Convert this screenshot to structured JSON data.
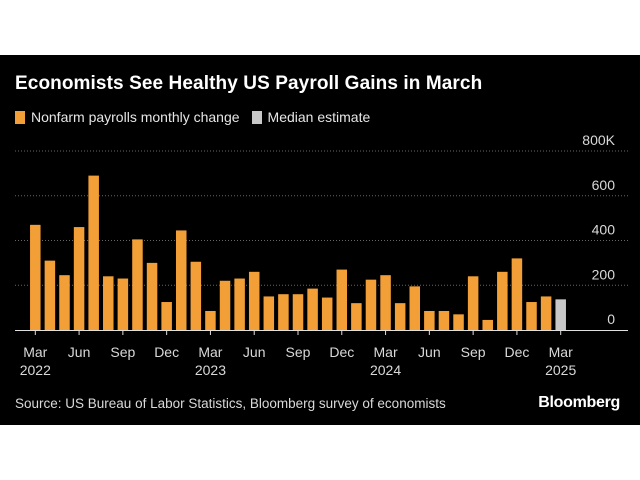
{
  "title": "Economists See Healthy US Payroll Gains in March",
  "source": "Source: US Bureau of Labor Statistics, Bloomberg survey of economists",
  "brand": "Bloomberg",
  "colors": {
    "background": "#000000",
    "actual": "#f39f37",
    "estimate": "#c8c8c8",
    "grid": "#666666",
    "text": "#ffffff"
  },
  "chart_data": {
    "type": "bar",
    "legend": [
      {
        "label": "Nonfarm payrolls monthly change",
        "color": "#f39f37"
      },
      {
        "label": "Median estimate",
        "color": "#c8c8c8"
      }
    ],
    "y_ticks": [
      {
        "value": 0,
        "label": "0"
      },
      {
        "value": 200,
        "label": "200"
      },
      {
        "value": 400,
        "label": "400"
      },
      {
        "value": 600,
        "label": "600"
      },
      {
        "value": 800,
        "label": "800K"
      }
    ],
    "ylim": [
      0,
      800
    ],
    "months": [
      "2022-03",
      "2022-04",
      "2022-05",
      "2022-06",
      "2022-07",
      "2022-08",
      "2022-09",
      "2022-10",
      "2022-11",
      "2022-12",
      "2023-01",
      "2023-02",
      "2023-03",
      "2023-04",
      "2023-05",
      "2023-06",
      "2023-07",
      "2023-08",
      "2023-09",
      "2023-10",
      "2023-11",
      "2023-12",
      "2024-01",
      "2024-02",
      "2024-03",
      "2024-04",
      "2024-05",
      "2024-06",
      "2024-07",
      "2024-08",
      "2024-09",
      "2024-10",
      "2024-11",
      "2024-12",
      "2025-01",
      "2025-02",
      "2025-03"
    ],
    "series": [
      {
        "name": "Nonfarm payrolls monthly change",
        "values": [
          470,
          310,
          245,
          460,
          690,
          240,
          230,
          405,
          300,
          125,
          445,
          305,
          85,
          220,
          230,
          260,
          150,
          160,
          160,
          185,
          145,
          270,
          120,
          225,
          245,
          120,
          195,
          85,
          85,
          70,
          240,
          45,
          260,
          320,
          125,
          150,
          null
        ]
      },
      {
        "name": "Median estimate",
        "values": [
          null,
          null,
          null,
          null,
          null,
          null,
          null,
          null,
          null,
          null,
          null,
          null,
          null,
          null,
          null,
          null,
          null,
          null,
          null,
          null,
          null,
          null,
          null,
          null,
          null,
          null,
          null,
          null,
          null,
          null,
          null,
          null,
          null,
          null,
          null,
          null,
          137
        ]
      }
    ],
    "x_ticks": [
      {
        "index": 0,
        "label": "Mar",
        "year": "2022"
      },
      {
        "index": 3,
        "label": "Jun",
        "year": ""
      },
      {
        "index": 6,
        "label": "Sep",
        "year": ""
      },
      {
        "index": 9,
        "label": "Dec",
        "year": ""
      },
      {
        "index": 12,
        "label": "Mar",
        "year": "2023"
      },
      {
        "index": 15,
        "label": "Jun",
        "year": ""
      },
      {
        "index": 18,
        "label": "Sep",
        "year": ""
      },
      {
        "index": 21,
        "label": "Dec",
        "year": ""
      },
      {
        "index": 24,
        "label": "Mar",
        "year": "2024"
      },
      {
        "index": 27,
        "label": "Jun",
        "year": ""
      },
      {
        "index": 30,
        "label": "Sep",
        "year": ""
      },
      {
        "index": 33,
        "label": "Dec",
        "year": ""
      },
      {
        "index": 36,
        "label": "Mar",
        "year": "2025"
      }
    ],
    "grid": true
  }
}
